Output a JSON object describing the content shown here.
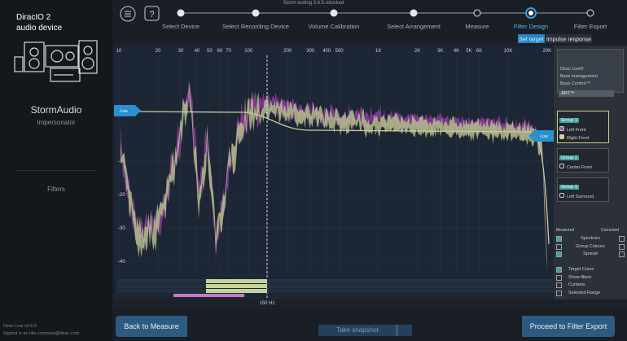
{
  "window_title": "Storm testing 3.6.5.relocked",
  "sidebar": {
    "device_title": "DiracIO 2",
    "device_subtitle": "audio device",
    "product": "StormAudio",
    "product_subtitle": "Impersonator",
    "nav": "Filters",
    "version": "Dirac Live v3.6.5",
    "signed_in": "Signed in as nils.coomans@dirac.com"
  },
  "steps": [
    {
      "label": "Select Device",
      "state": "done"
    },
    {
      "label": "Select Recording Device",
      "state": "done"
    },
    {
      "label": "Volume Calibration",
      "state": "done"
    },
    {
      "label": "Select Arrangement",
      "state": "done"
    },
    {
      "label": "Measure",
      "state": "todo"
    },
    {
      "label": "Filter Design",
      "state": "active"
    },
    {
      "label": "Filter Export",
      "state": "todo"
    }
  ],
  "tabs": [
    {
      "label": "Set target",
      "active": true
    },
    {
      "label": "Impulse response",
      "active": false
    }
  ],
  "graph": {
    "xticks": [
      10,
      20,
      30,
      40,
      50,
      60,
      70,
      100,
      200,
      300,
      400,
      500,
      {
        "value": 1000,
        "label": "1K"
      },
      {
        "value": 2000,
        "label": "2K"
      },
      {
        "value": 3000,
        "label": "3K"
      },
      {
        "value": 4000,
        "label": "4K"
      },
      {
        "value": 5000,
        "label": "5K"
      },
      {
        "value": 6000,
        "label": "6K"
      },
      {
        "value": 10000,
        "label": "10K"
      },
      {
        "value": 20000,
        "label": "20K"
      }
    ],
    "yticks": [
      -10,
      -20,
      -30,
      -40
    ],
    "cursor_label": "150 Hz",
    "handle_left": "Low",
    "handle_right": "Low"
  },
  "panel": {
    "options": [
      "Dirac Live®",
      "Bass management",
      "Bass Control™"
    ],
    "art": "ART™",
    "groups": [
      {
        "name": "Group 1",
        "channels": [
          {
            "name": "Left Front",
            "color": "#a24fb5"
          },
          {
            "name": "Right Front",
            "color": "#d8d27a"
          }
        ]
      },
      {
        "name": "Group 2",
        "channels": [
          {
            "name": "Center Front",
            "color": "none"
          }
        ]
      },
      {
        "name": "Group 3",
        "channels": [
          {
            "name": "Left Surround",
            "color": "none"
          }
        ]
      }
    ],
    "measured": "Measured",
    "corrected": "Corrected",
    "display": [
      {
        "label": "Spectrum",
        "measured": true,
        "corrected": false
      },
      {
        "label": "Group Colours",
        "measured": false,
        "corrected": false
      },
      {
        "label": "Spread",
        "measured": true,
        "corrected": false
      }
    ],
    "overlays": [
      {
        "label": "Target Curve",
        "checked": true
      },
      {
        "label": "Show filters",
        "checked": false
      },
      {
        "label": "Curtains",
        "checked": false
      },
      {
        "label": "Selected Range",
        "checked": false
      }
    ]
  },
  "footer": {
    "back": "Back to Measure",
    "snapshot": "Take snapshot",
    "proceed": "Proceed to Filter Export"
  }
}
